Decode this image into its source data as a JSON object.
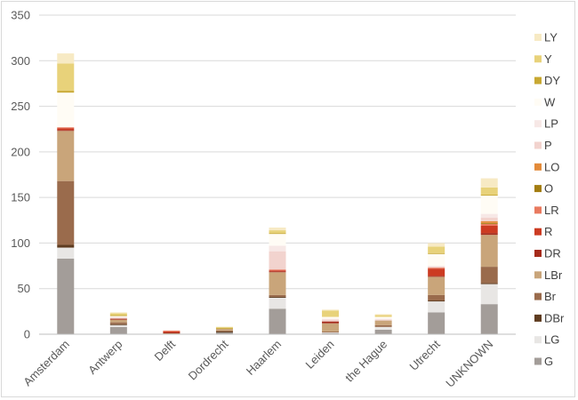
{
  "chart_data": {
    "type": "bar",
    "stacked": true,
    "title": "",
    "xlabel": "",
    "ylabel": "",
    "ylim": [
      0,
      350
    ],
    "y_ticks": [
      0,
      50,
      100,
      150,
      200,
      250,
      300,
      350
    ],
    "grid": true,
    "legend_position": "right",
    "categories": [
      "Amsterdam",
      "Antwerp",
      "Delft",
      "Dordrecht",
      "Haarlem",
      "Leiden",
      "the Hague",
      "Utrecht",
      "UNKNOWN"
    ],
    "series": [
      {
        "name": "G",
        "color": "#a39d99",
        "values": [
          83,
          8,
          0,
          2,
          28,
          1,
          5,
          24,
          33
        ]
      },
      {
        "name": "LG",
        "color": "#e8e6e4",
        "values": [
          12,
          2,
          0,
          0,
          12,
          1,
          3,
          12,
          22
        ]
      },
      {
        "name": "DBr",
        "color": "#5e3c20",
        "values": [
          3,
          1,
          0,
          1,
          1,
          0,
          0,
          1,
          1
        ]
      },
      {
        "name": "Br",
        "color": "#9a6b4c",
        "values": [
          70,
          2,
          0,
          1,
          2,
          1,
          2,
          6,
          18
        ]
      },
      {
        "name": "LBr",
        "color": "#c9a57a",
        "values": [
          55,
          3,
          1,
          2,
          25,
          9,
          5,
          20,
          35
        ]
      },
      {
        "name": "DR",
        "color": "#a52a1a",
        "values": [
          1,
          1,
          1,
          0,
          1,
          2,
          0,
          1,
          2
        ]
      },
      {
        "name": "R",
        "color": "#cc3b22",
        "values": [
          2,
          0,
          1,
          0,
          1,
          0,
          0,
          8,
          8
        ]
      },
      {
        "name": "LR",
        "color": "#e97a5f",
        "values": [
          1,
          0,
          1,
          0,
          1,
          0,
          0,
          1,
          2
        ]
      },
      {
        "name": "O",
        "color": "#a37d10",
        "values": [
          0,
          0,
          0,
          0,
          0,
          0,
          0,
          0,
          1
        ]
      },
      {
        "name": "LO",
        "color": "#e38b3a",
        "values": [
          0,
          0,
          0,
          0,
          0,
          0,
          0,
          0,
          2
        ]
      },
      {
        "name": "P",
        "color": "#f2d3ce",
        "values": [
          0,
          1,
          0,
          0,
          20,
          2,
          1,
          1,
          4
        ]
      },
      {
        "name": "LP",
        "color": "#f7e8e6",
        "values": [
          0,
          1,
          0,
          0,
          6,
          1,
          1,
          1,
          4
        ]
      },
      {
        "name": "W",
        "color": "#fffcf5",
        "values": [
          38,
          1,
          0,
          0,
          13,
          2,
          2,
          13,
          20
        ]
      },
      {
        "name": "DY",
        "color": "#c8a832",
        "values": [
          2,
          1,
          0,
          1,
          1,
          0,
          0,
          1,
          1
        ]
      },
      {
        "name": "Y",
        "color": "#e8d27a",
        "values": [
          30,
          2,
          0,
          1,
          3,
          7,
          2,
          7,
          8
        ]
      },
      {
        "name": "LY",
        "color": "#f7eac4",
        "values": [
          11,
          1,
          0,
          0,
          3,
          1,
          1,
          4,
          10
        ]
      }
    ]
  }
}
